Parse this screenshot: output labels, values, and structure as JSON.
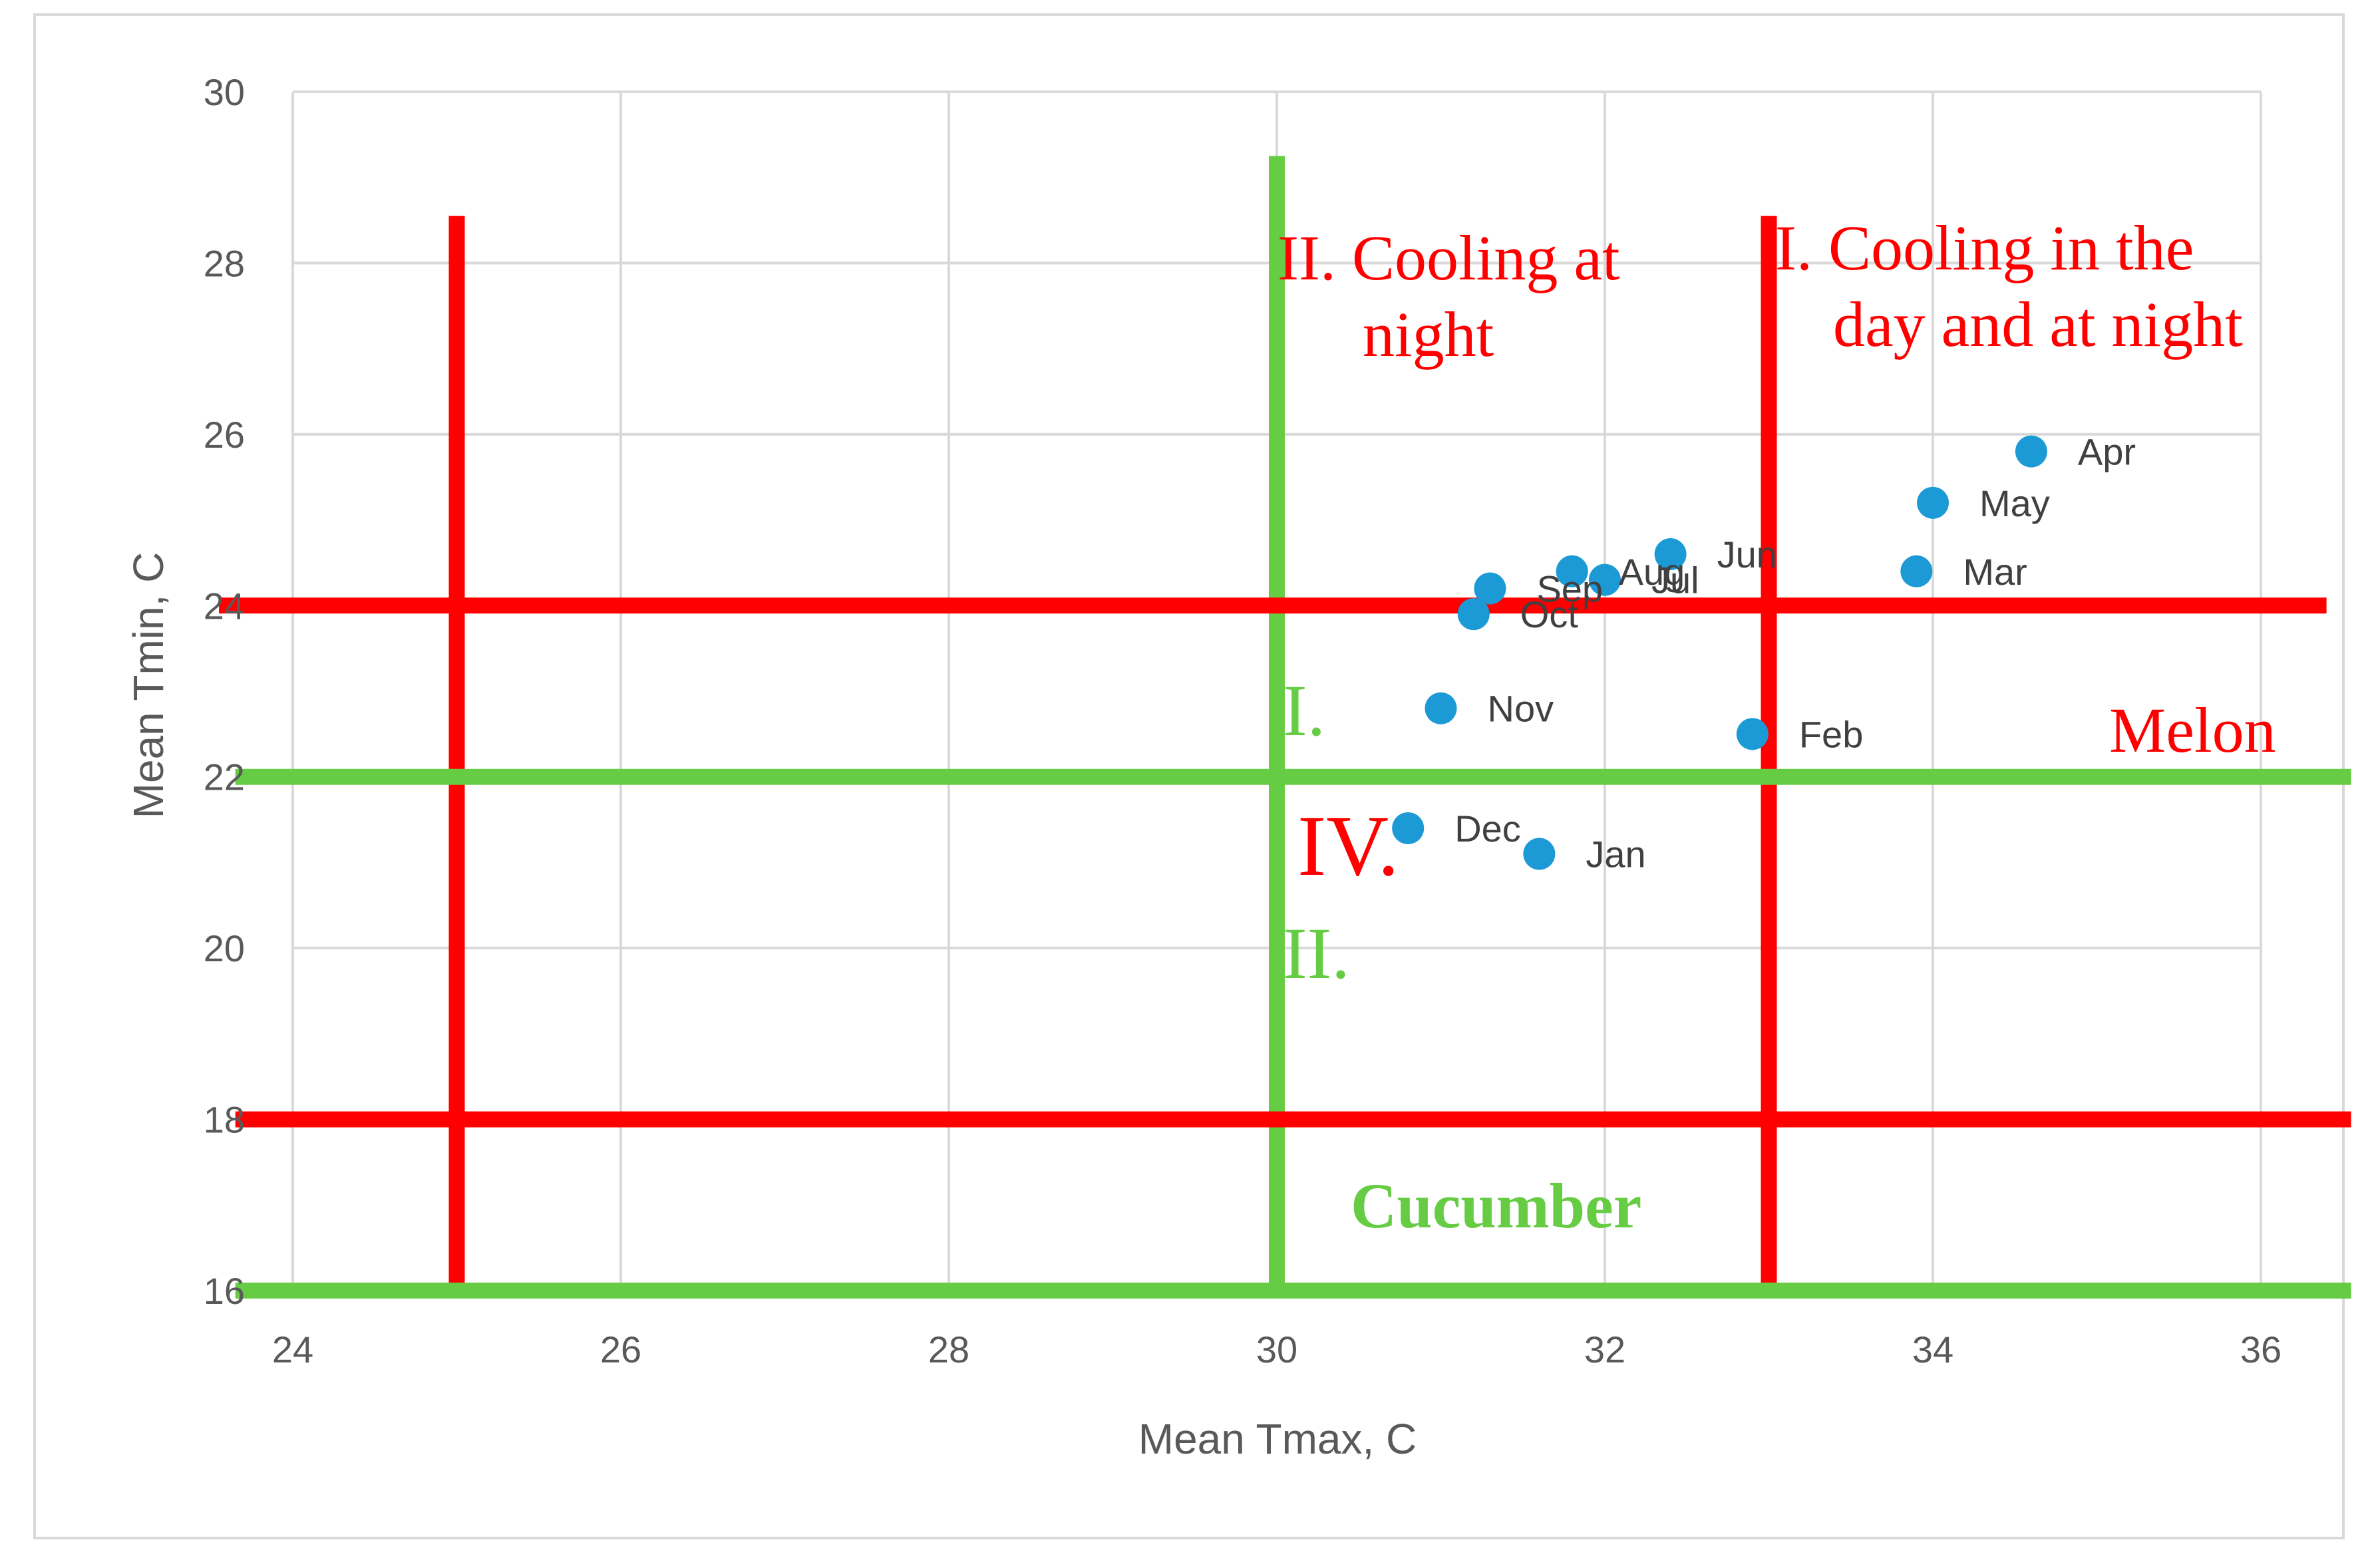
{
  "chart_data": {
    "type": "scatter",
    "title": "",
    "xlabel": "Mean Tmax, C",
    "ylabel": "Mean Tmin, C",
    "xlim": [
      24,
      36
    ],
    "ylim": [
      16,
      30
    ],
    "xticks": [
      "24",
      "26",
      "28",
      "30",
      "32",
      "34",
      "36"
    ],
    "yticks": [
      "16",
      "18",
      "20",
      "22",
      "24",
      "26",
      "28",
      "30"
    ],
    "grid": true,
    "point_color": "#1B9AD6",
    "points": [
      {
        "label": "Apr",
        "x": 34.6,
        "y": 25.8
      },
      {
        "label": "May",
        "x": 34.0,
        "y": 25.2
      },
      {
        "label": "Mar",
        "x": 33.9,
        "y": 24.4
      },
      {
        "label": "Jun",
        "x": 32.4,
        "y": 24.6
      },
      {
        "label": "Jul",
        "x": 32.0,
        "y": 24.3
      },
      {
        "label": "Aug",
        "x": 31.8,
        "y": 24.4
      },
      {
        "label": "Sep",
        "x": 31.3,
        "y": 24.2
      },
      {
        "label": "Oct",
        "x": 31.2,
        "y": 23.9
      },
      {
        "label": "Nov",
        "x": 31.0,
        "y": 22.8
      },
      {
        "label": "Feb",
        "x": 32.9,
        "y": 22.5
      },
      {
        "label": "Dec",
        "x": 30.8,
        "y": 21.4
      },
      {
        "label": "Jan",
        "x": 31.6,
        "y": 21.1
      }
    ],
    "thresholds": {
      "melon": {
        "color": "#FF0000",
        "vertical_x": [
          25,
          33
        ],
        "horizontal_y": [
          24,
          18
        ]
      },
      "cucumber": {
        "color": "#66CC44",
        "vertical_x": [
          30
        ],
        "horizontal_y": [
          22,
          16
        ]
      }
    },
    "annotations": {
      "cooling_night_line1": "II. Cooling at",
      "cooling_night_line2": "night",
      "cooling_day_night_line1": "I. Cooling in the",
      "cooling_day_night_line2": "day and at night",
      "melon": "Melon",
      "cucumber": "Cucumber",
      "green_i": "I.",
      "red_iv": "IV.",
      "green_ii": "II."
    }
  }
}
